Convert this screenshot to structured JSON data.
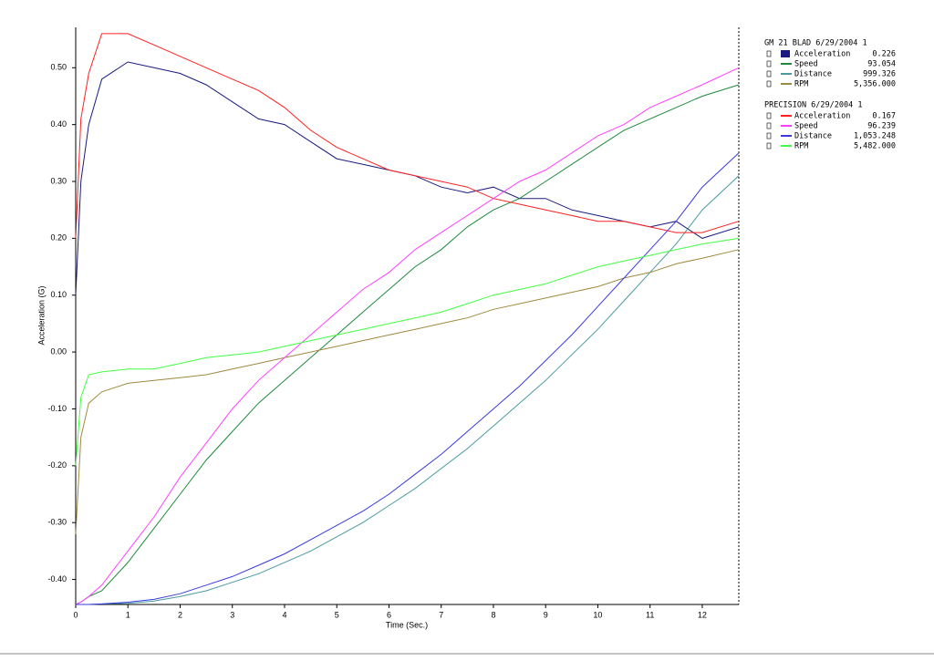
{
  "chart_data": {
    "type": "line",
    "x_label": "Time (Sec.)",
    "y_label": "Acceleration (G)",
    "x": [
      0,
      0.1,
      0.25,
      0.5,
      1,
      1.5,
      2,
      2.5,
      3,
      3.5,
      4,
      4.5,
      5,
      5.5,
      6,
      6.5,
      7,
      7.5,
      8,
      8.5,
      9,
      9.5,
      10,
      10.5,
      11,
      11.5,
      12,
      12.7
    ],
    "xlim": [
      0,
      12.7
    ],
    "ylim": [
      -0.444,
      0.571
    ],
    "xticks": [
      0,
      1,
      2,
      3,
      4,
      5,
      6,
      7,
      8,
      9,
      10,
      11,
      12
    ],
    "yticks": [
      {
        "value": -0.4,
        "label": "-0.40"
      },
      {
        "value": -0.3,
        "label": "-0.30"
      },
      {
        "value": -0.2,
        "label": "-0.20"
      },
      {
        "value": -0.1,
        "label": "-0.10"
      },
      {
        "value": 0,
        "label": "0.00"
      },
      {
        "value": 0.1,
        "label": "0.10"
      },
      {
        "value": 0.2,
        "label": "0.20"
      },
      {
        "value": 0.3,
        "label": "0.30"
      },
      {
        "value": 0.4,
        "label": "0.40"
      },
      {
        "value": 0.5,
        "label": "0.50"
      }
    ],
    "groups": [
      {
        "title": "GM 21 BLAD 6/29/2004 1",
        "series": [
          {
            "name": "Acceleration",
            "readout": "0.226",
            "color": "#1a1a80",
            "values": [
              0.1,
              0.3,
              0.4,
              0.48,
              0.51,
              0.5,
              0.49,
              0.47,
              0.44,
              0.41,
              0.4,
              0.37,
              0.34,
              0.33,
              0.32,
              0.31,
              0.29,
              0.28,
              0.29,
              0.27,
              0.27,
              0.25,
              0.24,
              0.23,
              0.22,
              0.23,
              0.2,
              0.22
            ]
          },
          {
            "name": "Speed",
            "readout": "93.054",
            "color": "#1e8a3c",
            "values": [
              -0.444,
              -0.44,
              -0.43,
              -0.42,
              -0.37,
              -0.31,
              -0.25,
              -0.19,
              -0.14,
              -0.09,
              -0.05,
              -0.01,
              0.03,
              0.07,
              0.11,
              0.15,
              0.18,
              0.22,
              0.25,
              0.27,
              0.3,
              0.33,
              0.36,
              0.39,
              0.41,
              0.43,
              0.45,
              0.47
            ]
          },
          {
            "name": "Distance",
            "readout": "999.326",
            "color": "#4a9aa0",
            "values": [
              -0.444,
              -0.444,
              -0.444,
              -0.443,
              -0.442,
              -0.438,
              -0.43,
              -0.42,
              -0.405,
              -0.39,
              -0.37,
              -0.35,
              -0.325,
              -0.3,
              -0.27,
              -0.24,
              -0.205,
              -0.17,
              -0.13,
              -0.09,
              -0.05,
              -0.005,
              0.04,
              0.09,
              0.14,
              0.19,
              0.25,
              0.31
            ]
          },
          {
            "name": "RPM",
            "readout": "5,356.000",
            "color": "#a08a40",
            "values": [
              -0.32,
              -0.15,
              -0.09,
              -0.07,
              -0.055,
              -0.05,
              -0.045,
              -0.04,
              -0.03,
              -0.02,
              -0.01,
              0.0,
              0.01,
              0.02,
              0.03,
              0.04,
              0.05,
              0.06,
              0.075,
              0.085,
              0.095,
              0.105,
              0.115,
              0.13,
              0.14,
              0.155,
              0.165,
              0.18
            ]
          }
        ]
      },
      {
        "title": "PRECISION 6/29/2004 1",
        "series": [
          {
            "name": "Acceleration",
            "readout": "0.167",
            "color": "#ff2020",
            "values": [
              0.2,
              0.41,
              0.49,
              0.56,
              0.56,
              0.54,
              0.52,
              0.5,
              0.48,
              0.46,
              0.43,
              0.39,
              0.36,
              0.34,
              0.32,
              0.31,
              0.3,
              0.29,
              0.27,
              0.26,
              0.25,
              0.24,
              0.23,
              0.23,
              0.22,
              0.21,
              0.21,
              0.23
            ]
          },
          {
            "name": "Speed",
            "readout": "96.239",
            "color": "#ff40ff",
            "values": [
              -0.444,
              -0.44,
              -0.43,
              -0.41,
              -0.35,
              -0.29,
              -0.22,
              -0.16,
              -0.1,
              -0.05,
              -0.01,
              0.03,
              0.07,
              0.11,
              0.14,
              0.18,
              0.21,
              0.24,
              0.27,
              0.3,
              0.32,
              0.35,
              0.38,
              0.4,
              0.43,
              0.45,
              0.47,
              0.5
            ]
          },
          {
            "name": "Distance",
            "readout": "1,053.248",
            "color": "#3a3ae0",
            "values": [
              -0.444,
              -0.444,
              -0.444,
              -0.443,
              -0.44,
              -0.435,
              -0.425,
              -0.41,
              -0.395,
              -0.375,
              -0.355,
              -0.33,
              -0.305,
              -0.28,
              -0.25,
              -0.215,
              -0.18,
              -0.14,
              -0.1,
              -0.06,
              -0.015,
              0.03,
              0.08,
              0.13,
              0.18,
              0.23,
              0.29,
              0.35
            ]
          },
          {
            "name": "RPM",
            "readout": "5,482.000",
            "color": "#40ff40",
            "values": [
              -0.2,
              -0.08,
              -0.04,
              -0.035,
              -0.03,
              -0.03,
              -0.02,
              -0.01,
              -0.005,
              0.0,
              0.01,
              0.02,
              0.03,
              0.04,
              0.05,
              0.06,
              0.07,
              0.085,
              0.1,
              0.11,
              0.12,
              0.135,
              0.15,
              0.16,
              0.17,
              0.18,
              0.19,
              0.2
            ]
          }
        ]
      }
    ]
  }
}
